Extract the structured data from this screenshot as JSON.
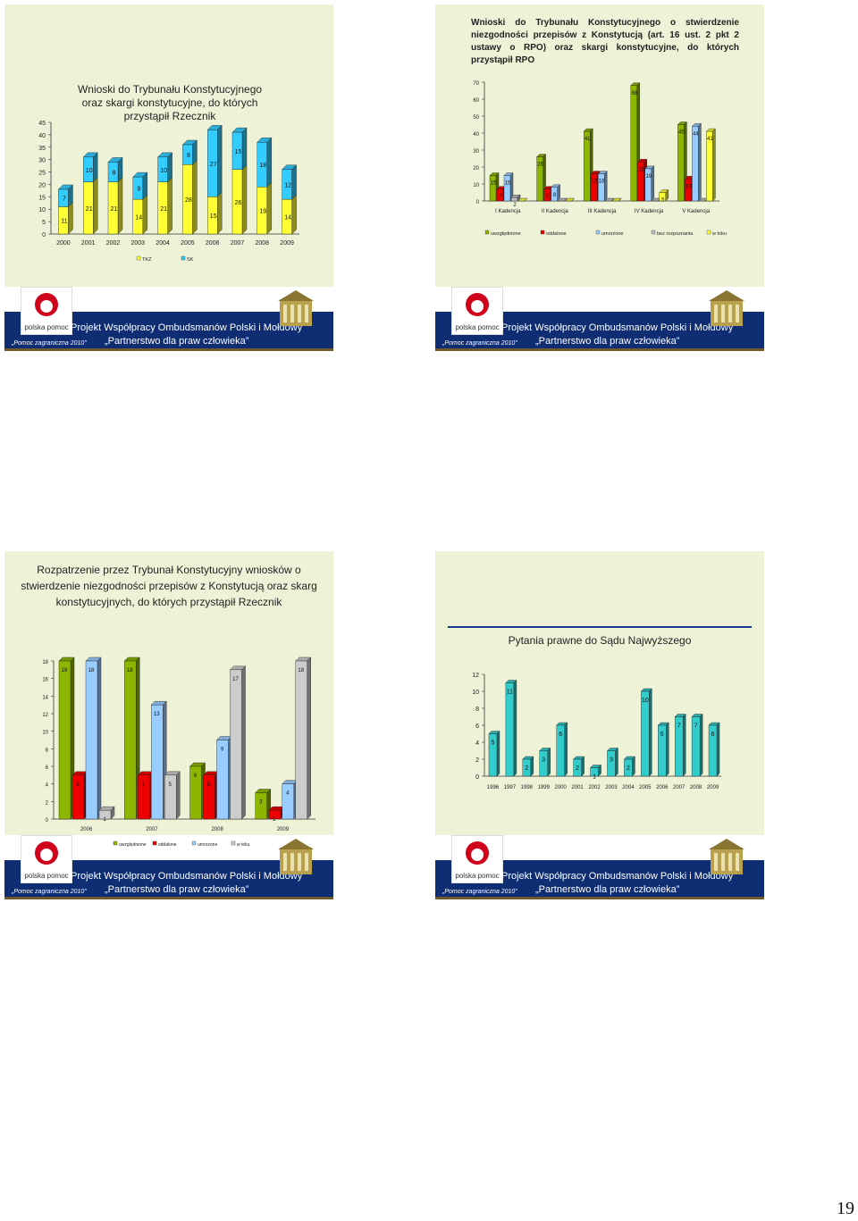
{
  "page_number": "19",
  "footer": {
    "logo_text": "polska pomoc",
    "project": "Projekt Współpracy Ombudsmanów Polski i Mołdowy",
    "partnership": "„Partnerstwo dla praw człowieka”",
    "aid": "„Pomoc zagraniczna 2010”"
  },
  "slide1": {
    "title": "Wnioski do Trybunału Konstytucyjnego oraz skargi konstytucyjne, do których przystąpił Rzecznik"
  },
  "slide2": {
    "title": "Wnioski do Trybunału Konstytucyjnego o stwierdzenie niezgodności przepisów z Konstytucją (art. 16 ust. 2 pkt 2 ustawy o RPO) oraz skargi konstytucyjne, do których przystąpił RPO"
  },
  "slide3": {
    "title": "Rozpatrzenie przez Trybunał Konstytucyjny wniosków o stwierdzenie niezgodności przepisów z Konstytucją oraz skarg konstytucyjnych, do których przystąpił Rzecznik"
  },
  "slide4": {
    "title": "Pytania prawne do Sądu Najwyższego"
  },
  "chart_data": [
    {
      "type": "bar",
      "stacked": true,
      "title": "Wnioski do Trybunału Konstytucyjnego oraz skargi konstytucyjne, do których przystąpił Rzecznik",
      "categories": [
        "2000",
        "2001",
        "2002",
        "2003",
        "2004",
        "2005",
        "2006",
        "2007",
        "2008",
        "2009"
      ],
      "series": [
        {
          "name": "TKZ",
          "values": [
            11,
            21,
            21,
            14,
            21,
            28,
            15,
            26,
            19,
            14
          ],
          "color": "#ffff33"
        },
        {
          "name": "SK",
          "values": [
            7,
            10,
            8,
            9,
            10,
            8,
            27,
            15,
            18,
            12
          ],
          "color": "#33ccff"
        }
      ],
      "ylim": [
        0,
        45
      ],
      "yticks": [
        "0",
        "5",
        "10",
        "15",
        "20",
        "25",
        "30",
        "35",
        "40",
        "45"
      ],
      "legend": [
        "TKZ",
        "SK"
      ]
    },
    {
      "type": "bar",
      "categories": [
        "I Kadencja",
        "II Kadencja",
        "III Kadencja",
        "IV Kadencja",
        "V Kadencja"
      ],
      "series": [
        {
          "name": "uwzględnione",
          "values": [
            15,
            26,
            41,
            68,
            45
          ],
          "color": "#8db600"
        },
        {
          "name": "oddalone",
          "values": [
            7,
            7,
            16,
            23,
            13
          ],
          "color": "#ee0000"
        },
        {
          "name": "umorzone",
          "values": [
            15,
            8,
            16,
            19,
            44
          ],
          "color": "#99ccff"
        },
        {
          "name": "bez rozpoznania",
          "values": [
            2,
            0,
            0,
            0,
            0
          ],
          "color": "#c0c0c0"
        },
        {
          "name": "w toku",
          "values": [
            0,
            0,
            0,
            5,
            41
          ],
          "color": "#ffff33"
        }
      ],
      "ylim": [
        0,
        70
      ],
      "yticks": [
        "0",
        "10",
        "20",
        "30",
        "40",
        "50",
        "60",
        "70"
      ],
      "legend": [
        "uwzględnione",
        "oddalone",
        "umorzone",
        "bez rozpoznania",
        "w toku"
      ]
    },
    {
      "type": "bar",
      "title": "Rozpatrzenie przez Trybunał Konstytucyjny wniosków o stwierdzenie niezgodności przepisów z Konstytucją oraz skarg konstytucyjnych, do których przystąpił Rzecznik",
      "categories": [
        "2006",
        "2007",
        "2008",
        "2009"
      ],
      "series": [
        {
          "name": "uwzględnione",
          "values": [
            18,
            18,
            6,
            3
          ],
          "color": "#8db600"
        },
        {
          "name": "oddalone",
          "values": [
            5,
            5,
            5,
            1
          ],
          "color": "#ee0000"
        },
        {
          "name": "umorzone",
          "values": [
            18,
            13,
            9,
            4
          ],
          "color": "#99ccff"
        },
        {
          "name": "w toku",
          "values": [
            1,
            5,
            17,
            18
          ],
          "color": "#cccccc"
        }
      ],
      "ylim": [
        0,
        18
      ],
      "yticks": [
        "0",
        "2",
        "4",
        "6",
        "8",
        "10",
        "12",
        "14",
        "16",
        "18"
      ],
      "legend": [
        "uwzględnione",
        "oddalone",
        "umorzone",
        "w toku"
      ]
    },
    {
      "type": "bar",
      "title": "Pytania prawne do Sądu Najwyższego",
      "categories": [
        "1996",
        "1997",
        "1998",
        "1999",
        "2000",
        "2001",
        "2002",
        "2003",
        "2004",
        "2005",
        "2006",
        "2007",
        "2008",
        "2009"
      ],
      "values": [
        5,
        11,
        2,
        3,
        6,
        2,
        1,
        3,
        2,
        10,
        6,
        7,
        7,
        6
      ],
      "color": "#33cccc",
      "ylim": [
        0,
        12
      ],
      "yticks": [
        "0",
        "2",
        "4",
        "6",
        "8",
        "10",
        "12"
      ]
    }
  ]
}
